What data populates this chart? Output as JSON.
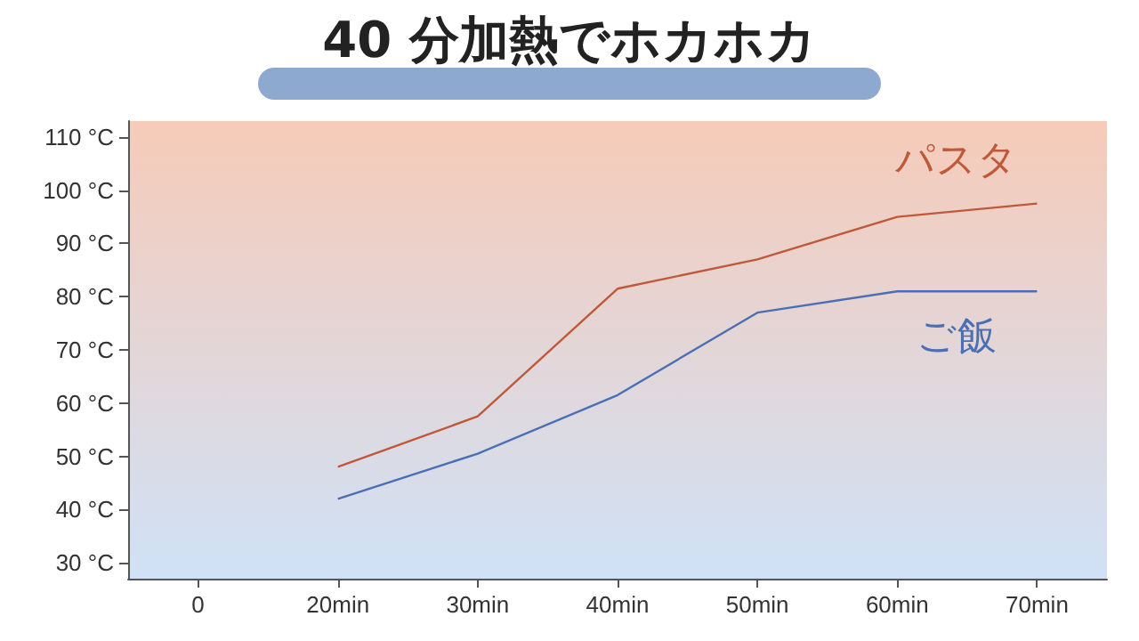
{
  "chart_data": {
    "type": "line",
    "title": "40 分加熱でホカホカ",
    "categories": [
      "0",
      "20min",
      "30min",
      "40min",
      "50min",
      "60min",
      "70min"
    ],
    "series": [
      {
        "name": "パスタ",
        "color": "#c0583a",
        "values": [
          null,
          48,
          57.5,
          81.5,
          87,
          95,
          97.5
        ]
      },
      {
        "name": "ご飯",
        "color": "#4a6fb5",
        "values": [
          null,
          42,
          50.5,
          61.5,
          77,
          81,
          81
        ]
      }
    ],
    "ylim": [
      27,
      113
    ],
    "yticks": [
      {
        "value": 30,
        "label": "30 °C"
      },
      {
        "value": 40,
        "label": "40 °C"
      },
      {
        "value": 50,
        "label": "50 °C"
      },
      {
        "value": 60,
        "label": "60 °C"
      },
      {
        "value": 70,
        "label": "70 °C"
      },
      {
        "value": 80,
        "label": "80 °C"
      },
      {
        "value": 90,
        "label": "90 °C"
      },
      {
        "value": 100,
        "label": "100 °C"
      },
      {
        "value": 110,
        "label": "110 °C"
      }
    ],
    "grid": false,
    "legend": false,
    "marker": "none",
    "line_style": "solid"
  }
}
